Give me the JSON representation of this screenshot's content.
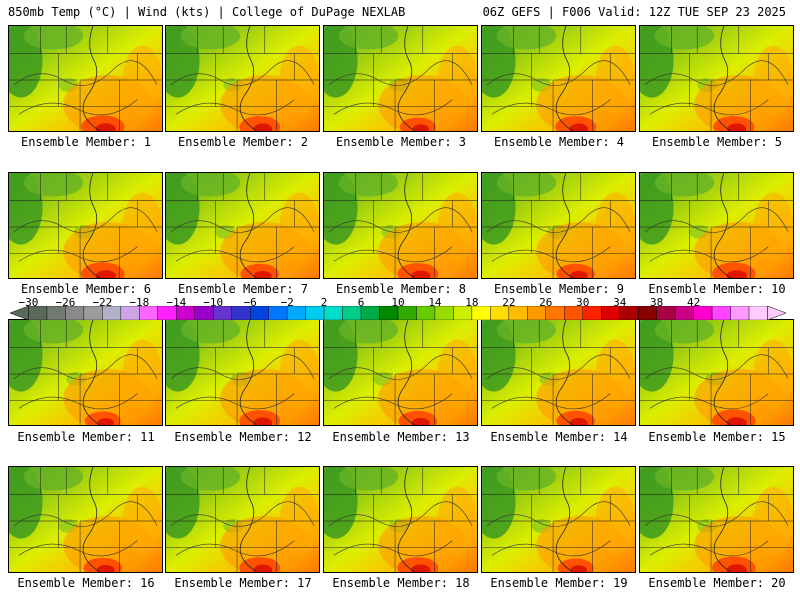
{
  "header": {
    "left": "850mb Temp (°C) | Wind (kts) | College of DuPage NEXLAB",
    "right": "06Z GEFS | F006 Valid: 12Z TUE SEP 23 2025"
  },
  "panels": [
    {
      "label": "Ensemble Member: 1",
      "hot": 0.85
    },
    {
      "label": "Ensemble Member: 2",
      "hot": 0.8
    },
    {
      "label": "Ensemble Member: 3",
      "hot": 0.7
    },
    {
      "label": "Ensemble Member: 4",
      "hot": 0.8
    },
    {
      "label": "Ensemble Member: 5",
      "hot": 0.8
    },
    {
      "label": "Ensemble Member: 6",
      "hot": 0.85
    },
    {
      "label": "Ensemble Member: 7",
      "hot": 0.75
    },
    {
      "label": "Ensemble Member: 8",
      "hot": 0.8
    },
    {
      "label": "Ensemble Member: 9",
      "hot": 0.75
    },
    {
      "label": "Ensemble Member: 10",
      "hot": 0.85
    },
    {
      "label": "Ensemble Member: 11",
      "hot": 0.7
    },
    {
      "label": "Ensemble Member: 12",
      "hot": 0.8
    },
    {
      "label": "Ensemble Member: 13",
      "hot": 0.75
    },
    {
      "label": "Ensemble Member: 14",
      "hot": 0.75
    },
    {
      "label": "Ensemble Member: 15",
      "hot": 0.85
    },
    {
      "label": "Ensemble Member: 16",
      "hot": 0.75
    },
    {
      "label": "Ensemble Member: 17",
      "hot": 0.8
    },
    {
      "label": "Ensemble Member: 18",
      "hot": 0.8
    },
    {
      "label": "Ensemble Member: 19",
      "hot": 0.7
    },
    {
      "label": "Ensemble Member: 20",
      "hot": 0.85
    }
  ],
  "colorbar": {
    "labels": [
      "−30",
      "−26",
      "−22",
      "−18",
      "−14",
      "−10",
      "−6",
      "−2",
      "2",
      "6",
      "10",
      "14",
      "18",
      "22",
      "26",
      "30",
      "34",
      "38",
      "42"
    ],
    "colors": [
      "#5a6a5a",
      "#707a70",
      "#8a8a8a",
      "#9c9c9c",
      "#b0b0c8",
      "#cfa4e6",
      "#ff66ff",
      "#ff22ff",
      "#cc00cc",
      "#9900cc",
      "#6633cc",
      "#3333cc",
      "#0044dd",
      "#0077ff",
      "#00aaff",
      "#00ccee",
      "#00ddcc",
      "#00cc88",
      "#00aa44",
      "#008800",
      "#33aa00",
      "#66cc00",
      "#99dd00",
      "#ccee00",
      "#ffff00",
      "#ffdd00",
      "#ffbb00",
      "#ff9900",
      "#ff7700",
      "#ff5500",
      "#ff2200",
      "#dd0000",
      "#aa0000",
      "#880000",
      "#aa0044",
      "#cc0088",
      "#ff00cc",
      "#ff44ff",
      "#ff99ff",
      "#ffccff"
    ]
  }
}
